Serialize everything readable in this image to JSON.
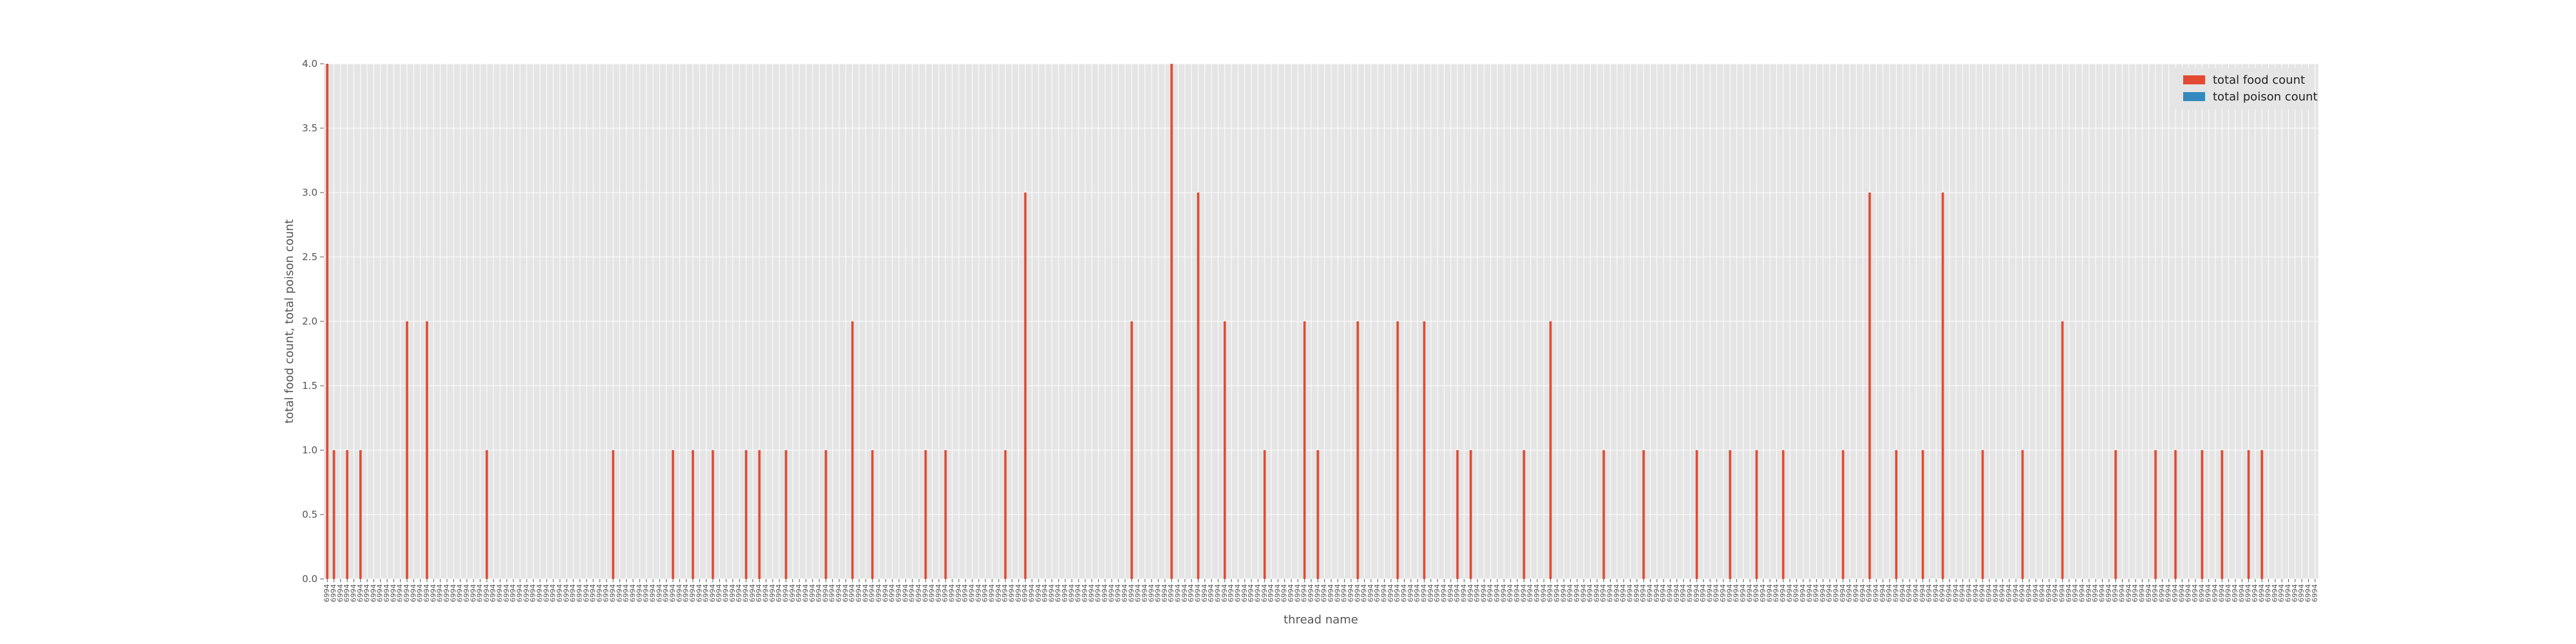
{
  "chart_data": {
    "type": "bar",
    "xlabel": "thread name",
    "ylabel": "total food count, total poison count",
    "ylim": [
      0,
      4
    ],
    "yticks": [
      "0.0",
      "0.5",
      "1.0",
      "1.5",
      "2.0",
      "2.5",
      "3.0",
      "3.5",
      "4.0"
    ],
    "grid": true,
    "legend_position": "top-right",
    "category_count": 300,
    "tick_label_prefix": "6994",
    "series": [
      {
        "name": "total food count",
        "color": "#e24a33",
        "values": [
          4,
          1,
          0,
          1,
          0,
          1,
          0,
          0,
          0,
          0,
          0,
          0,
          2,
          0,
          0,
          2,
          0,
          0,
          0,
          0,
          0,
          0,
          0,
          0,
          1,
          0,
          0,
          0,
          0,
          0,
          0,
          0,
          0,
          0,
          0,
          0,
          0,
          0,
          0,
          0,
          0,
          0,
          0,
          1,
          0,
          0,
          0,
          0,
          0,
          0,
          0,
          0,
          1,
          0,
          0,
          1,
          0,
          0,
          1,
          0,
          0,
          0,
          0,
          1,
          0,
          1,
          0,
          0,
          0,
          1,
          0,
          0,
          0,
          0,
          0,
          1,
          0,
          0,
          0,
          2,
          0,
          0,
          1,
          0,
          0,
          0,
          0,
          0,
          0,
          0,
          1,
          0,
          0,
          1,
          0,
          0,
          0,
          0,
          0,
          0,
          0,
          0,
          1,
          0,
          0,
          3,
          0,
          0,
          0,
          0,
          0,
          0,
          0,
          0,
          0,
          0,
          0,
          0,
          0,
          0,
          0,
          2,
          0,
          0,
          0,
          0,
          0,
          4,
          0,
          0,
          0,
          3,
          0,
          0,
          0,
          2,
          0,
          0,
          0,
          0,
          0,
          1,
          0,
          0,
          0,
          0,
          0,
          2,
          0,
          1,
          0,
          0,
          0,
          0,
          0,
          2,
          0,
          0,
          0,
          0,
          0,
          2,
          0,
          0,
          0,
          2,
          0,
          0,
          0,
          0,
          1,
          0,
          1,
          0,
          0,
          0,
          0,
          0,
          0,
          0,
          1,
          0,
          0,
          0,
          2,
          0,
          0,
          0,
          0,
          0,
          0,
          0,
          1,
          0,
          0,
          0,
          0,
          0,
          1,
          0,
          0,
          0,
          0,
          0,
          0,
          0,
          1,
          0,
          0,
          0,
          0,
          1,
          0,
          0,
          0,
          1,
          0,
          0,
          0,
          1,
          0,
          0,
          0,
          0,
          0,
          0,
          0,
          0,
          1,
          0,
          0,
          0,
          3,
          0,
          0,
          0,
          1,
          0,
          0,
          0,
          1,
          0,
          0,
          3,
          0,
          0,
          0,
          0,
          0,
          1,
          0,
          0,
          0,
          0,
          0,
          1,
          0,
          0,
          0,
          0,
          0,
          2,
          0,
          0,
          0,
          0,
          0,
          0,
          0,
          1,
          0,
          0,
          0,
          0,
          0,
          1,
          0,
          0,
          1,
          0,
          0,
          0,
          1,
          0,
          0,
          1,
          0,
          0,
          0,
          1,
          0,
          1,
          0
        ]
      },
      {
        "name": "total poison count",
        "color": "#348abd",
        "values": []
      }
    ]
  }
}
